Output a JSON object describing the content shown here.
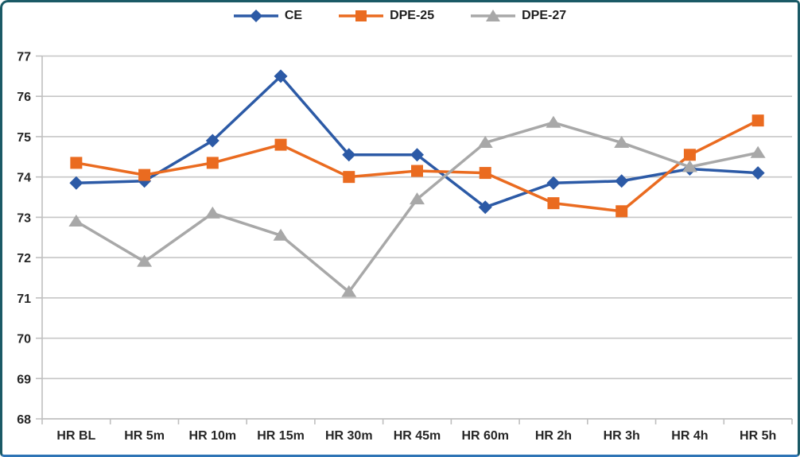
{
  "chart_data": {
    "type": "line",
    "title": "",
    "xlabel": "",
    "ylabel": "",
    "categories": [
      "HR BL",
      "HR 5m",
      "HR 10m",
      "HR 15m",
      "HR 30m",
      "HR 45m",
      "HR 60m",
      "HR 2h",
      "HR 3h",
      "HR 4h",
      "HR 5h"
    ],
    "series": [
      {
        "name": "CE",
        "color": "#2C5AA6",
        "marker": "diamond",
        "values": [
          73.85,
          73.9,
          74.9,
          76.5,
          74.55,
          74.55,
          73.25,
          73.85,
          73.9,
          74.2,
          74.1
        ]
      },
      {
        "name": "DPE-25",
        "color": "#EA6B20",
        "marker": "square",
        "values": [
          74.35,
          74.05,
          74.35,
          74.8,
          74.0,
          74.15,
          74.1,
          73.35,
          73.15,
          74.55,
          75.4
        ]
      },
      {
        "name": "DPE-27",
        "color": "#A8A8A8",
        "marker": "triangle",
        "values": [
          72.9,
          71.9,
          73.1,
          72.55,
          71.15,
          73.45,
          74.85,
          75.35,
          74.85,
          74.25,
          74.6
        ]
      }
    ],
    "ylim": [
      68,
      77
    ],
    "ytick_step": 1,
    "yticks": [
      77,
      76,
      75,
      74,
      73,
      72,
      71,
      70,
      69,
      68
    ],
    "grid": true,
    "legend_position": "top"
  },
  "style": {
    "frame_border_color": "#1B5A66",
    "frame_bottom_border_color": "#2E74B5",
    "background": "#FFFFFF",
    "gridline_color": "#C6C6C6",
    "axis_line_color": "#BFBFBF",
    "label_color": "#262626"
  }
}
